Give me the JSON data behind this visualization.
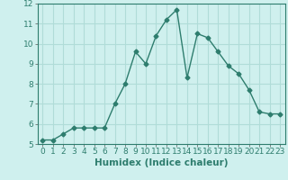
{
  "x": [
    0,
    1,
    2,
    3,
    4,
    5,
    6,
    7,
    8,
    9,
    10,
    11,
    12,
    13,
    14,
    15,
    16,
    17,
    18,
    19,
    20,
    21,
    22,
    23
  ],
  "y": [
    5.2,
    5.2,
    5.5,
    5.8,
    5.8,
    5.8,
    5.8,
    7.0,
    8.0,
    9.6,
    9.0,
    10.4,
    11.2,
    11.7,
    8.3,
    10.5,
    10.3,
    9.6,
    8.9,
    8.5,
    7.7,
    6.6,
    6.5,
    6.5
  ],
  "line_color": "#2e7d6e",
  "marker": "D",
  "marker_size": 2.5,
  "bg_color": "#cff0ee",
  "grid_color": "#b0dcd8",
  "xlabel": "Humidex (Indice chaleur)",
  "xlim": [
    -0.5,
    23.5
  ],
  "ylim": [
    5,
    12
  ],
  "yticks": [
    5,
    6,
    7,
    8,
    9,
    10,
    11,
    12
  ],
  "xticks": [
    0,
    1,
    2,
    3,
    4,
    5,
    6,
    7,
    8,
    9,
    10,
    11,
    12,
    13,
    14,
    15,
    16,
    17,
    18,
    19,
    20,
    21,
    22,
    23
  ],
  "xlabel_fontsize": 7.5,
  "tick_fontsize": 6.5,
  "line_width": 1.0
}
